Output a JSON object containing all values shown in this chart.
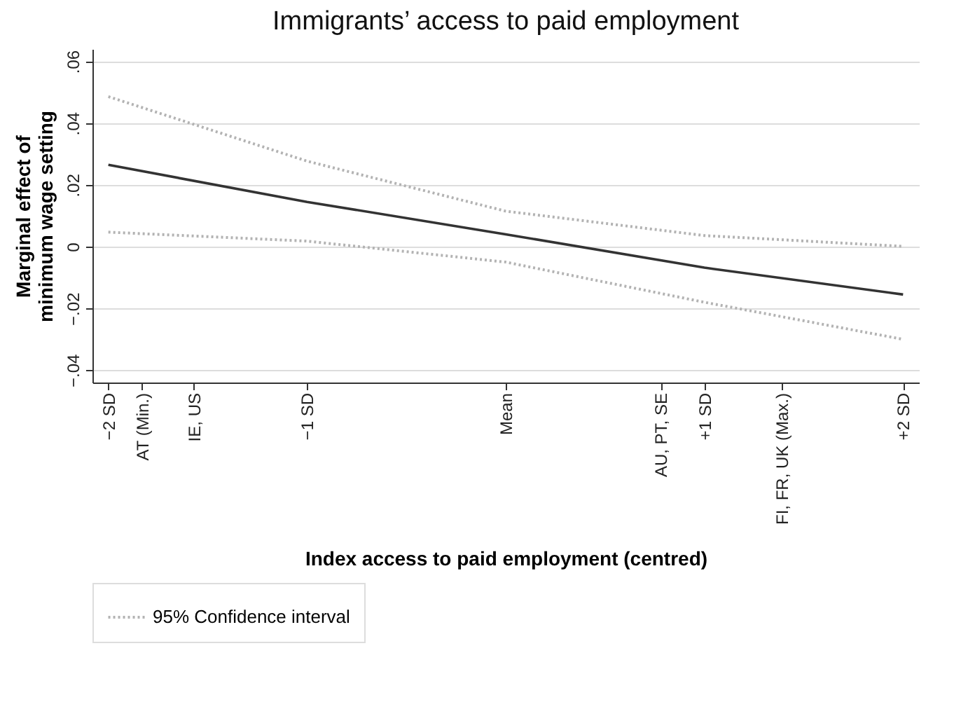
{
  "chart_data": {
    "type": "line",
    "title": "Immigrants’ access to paid employment",
    "xlabel": "Index access to paid employment (centred)",
    "ylabel": "Marginal effect of\nminimum wage setting",
    "x": [
      -2,
      -1,
      0,
      1,
      2
    ],
    "series": [
      {
        "color": "#333333",
        "line_style": "solid",
        "values": [
          0.0265,
          0.0145,
          0.004,
          -0.0068,
          -0.0155
        ]
      },
      {
        "name": "95% Confidence interval",
        "color": "#b3b3b3",
        "line_style": "dotted",
        "values": [
          0.0486,
          0.0277,
          0.0115,
          0.0036,
          0.0001
        ]
      },
      {
        "color": "#b3b3b3",
        "line_style": "dotted",
        "values": [
          0.0047,
          0.0018,
          -0.005,
          -0.018,
          -0.03
        ]
      }
    ],
    "xlim": [
      -2.08,
      2.08
    ],
    "xticks": [
      {
        "value": -2,
        "label": "−2 SD"
      },
      {
        "value": -1.83,
        "label": "AT (Min.)"
      },
      {
        "value": -1.57,
        "label": "IE, US"
      },
      {
        "value": -1,
        "label": "−1 SD"
      },
      {
        "value": 0,
        "label": "Mean"
      },
      {
        "value": 0.78,
        "label": "AU, PT, SE"
      },
      {
        "value": 1,
        "label": "+1 SD"
      },
      {
        "value": 1.39,
        "label": "FI, FR, UK (Max.)"
      },
      {
        "value": 2,
        "label": "+2 SD"
      }
    ],
    "ylim": [
      -0.044,
      0.064
    ],
    "yticks": [
      {
        "value": -0.04,
        "label": "−.04"
      },
      {
        "value": -0.02,
        "label": "−.02"
      },
      {
        "value": 0,
        "label": "0"
      },
      {
        "value": 0.02,
        "label": ".02"
      },
      {
        "value": 0.04,
        "label": ".04"
      },
      {
        "value": 0.06,
        "label": ".06"
      }
    ],
    "grid": "y",
    "legend": "bottom",
    "marker": "none"
  }
}
